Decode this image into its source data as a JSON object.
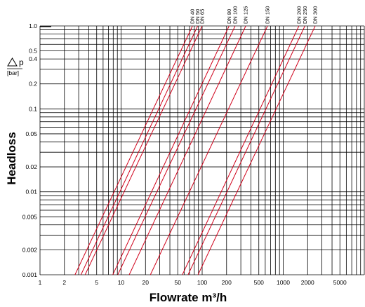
{
  "chart_data": {
    "type": "line",
    "title": "",
    "xlabel": "Flowrate m³/h",
    "ylabel": "Headloss",
    "ylabel_symbol": "p",
    "ylabel_unit": "[bar]",
    "x_scale": "log",
    "y_scale": "log",
    "xlim": [
      1,
      10000
    ],
    "ylim": [
      0.001,
      1.0
    ],
    "grid": true,
    "x_tick_labels": [
      {
        "value": 1,
        "label": "1"
      },
      {
        "value": 2,
        "label": "2"
      },
      {
        "value": 5,
        "label": "5"
      },
      {
        "value": 10,
        "label": "10"
      },
      {
        "value": 20,
        "label": "20"
      },
      {
        "value": 50,
        "label": "50"
      },
      {
        "value": 100,
        "label": "100"
      },
      {
        "value": 200,
        "label": "200"
      },
      {
        "value": 500,
        "label": "500"
      },
      {
        "value": 1000,
        "label": "1000"
      },
      {
        "value": 2000,
        "label": "2000"
      },
      {
        "value": 5000,
        "label": "5000"
      }
    ],
    "y_tick_labels": [
      {
        "value": 1.0,
        "label": "1.0"
      },
      {
        "value": 0.5,
        "label": "0.5"
      },
      {
        "value": 0.4,
        "label": "0.4"
      },
      {
        "value": 0.2,
        "label": "0.2"
      },
      {
        "value": 0.1,
        "label": "0.1"
      },
      {
        "value": 0.05,
        "label": "0.05"
      },
      {
        "value": 0.02,
        "label": "0.02"
      },
      {
        "value": 0.01,
        "label": "0.01"
      },
      {
        "value": 0.005,
        "label": "0.005"
      },
      {
        "value": 0.002,
        "label": "0.002"
      },
      {
        "value": 0.001,
        "label": "0.001"
      }
    ],
    "line_color": "#d0001a",
    "series": [
      {
        "name": "DN 40",
        "x": [
          2.7,
          76
        ],
        "y": [
          0.001,
          1.0
        ]
      },
      {
        "name": "DN 50",
        "x": [
          3.2,
          88
        ],
        "y": [
          0.001,
          1.0
        ]
      },
      {
        "name": "DN 65",
        "x": [
          3.6,
          100
        ],
        "y": [
          0.001,
          1.0
        ]
      },
      {
        "name": "DN 80",
        "x": [
          7.9,
          215
        ],
        "y": [
          0.001,
          1.0
        ]
      },
      {
        "name": "DN 100",
        "x": [
          9.1,
          255
        ],
        "y": [
          0.001,
          1.0
        ]
      },
      {
        "name": "DN 125",
        "x": [
          12.6,
          345
        ],
        "y": [
          0.001,
          1.0
        ]
      },
      {
        "name": "DN 150",
        "x": [
          23,
          640
        ],
        "y": [
          0.001,
          1.0
        ]
      },
      {
        "name": "DN 200",
        "x": [
          57,
          1560
        ],
        "y": [
          0.001,
          1.0
        ]
      },
      {
        "name": "DN 250",
        "x": [
          67,
          1850
        ],
        "y": [
          0.001,
          1.0
        ]
      },
      {
        "name": "DN 300",
        "x": [
          89,
          2480
        ],
        "y": [
          0.001,
          1.0
        ]
      }
    ]
  }
}
